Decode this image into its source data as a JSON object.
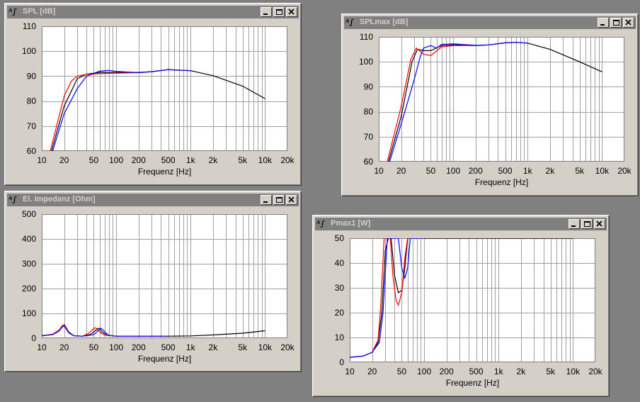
{
  "windows": {
    "spl": {
      "title": "SPL [dB]"
    },
    "splmax": {
      "title": "SPLmax [dB]"
    },
    "impedance": {
      "title": "El. Impedanz [Ohm]"
    },
    "pmax": {
      "title": "Pmax1 [W]"
    }
  },
  "colors": {
    "titlebar": "#808080",
    "window_bg": "#d4d0c8",
    "plot_bg": "#ffffff",
    "series": [
      "#000000",
      "#ff0000",
      "#0000ff"
    ]
  },
  "icons": {
    "window_icon": "app-icon",
    "minimize": "minimize-icon",
    "maximize": "maximize-icon",
    "close": "close-icon"
  },
  "chart_data": [
    {
      "id": "spl",
      "type": "line",
      "xscale": "log",
      "xlim": [
        10,
        20000
      ],
      "ylim": [
        60,
        110
      ],
      "xticks": [
        10,
        20,
        50,
        100,
        200,
        500,
        1000,
        2000,
        5000,
        10000,
        20000
      ],
      "xticklabels": [
        "10",
        "20",
        "50",
        "100",
        "200",
        "500",
        "1k",
        "2k",
        "5k",
        "10k",
        "20k"
      ],
      "yticks": [
        60,
        70,
        80,
        90,
        100,
        110
      ],
      "xlabel": "Frequenz [Hz]",
      "grid": true,
      "series": [
        {
          "color": "#000000",
          "x": [
            13.5,
            20,
            30,
            40,
            60,
            100,
            200,
            300,
            500,
            700,
            1000,
            2000,
            5000,
            10000
          ],
          "y": [
            60,
            78,
            89,
            90.8,
            91.5,
            91.5,
            91.5,
            91.8,
            92.6,
            92.4,
            92.2,
            90.2,
            86,
            81
          ]
        },
        {
          "color": "#ff0000",
          "x": [
            13,
            20,
            25,
            30,
            40,
            60,
            100,
            200,
            300,
            500,
            700,
            1000
          ],
          "y": [
            60,
            82,
            88,
            90,
            90.7,
            91,
            91.2,
            91.4,
            91.8,
            92.6,
            92.4,
            92.2
          ]
        },
        {
          "color": "#0000ff",
          "x": [
            14,
            20,
            30,
            40,
            60,
            80,
            100,
            200,
            300,
            500,
            700,
            1000
          ],
          "y": [
            60,
            75,
            85,
            90,
            92,
            92.3,
            91.9,
            91.4,
            91.8,
            92.6,
            92.4,
            92.2
          ]
        }
      ]
    },
    {
      "id": "splmax",
      "type": "line",
      "xscale": "log",
      "xlim": [
        10,
        20000
      ],
      "ylim": [
        60,
        110
      ],
      "xticks": [
        10,
        20,
        50,
        100,
        200,
        500,
        1000,
        2000,
        5000,
        10000,
        20000
      ],
      "xticklabels": [
        "10",
        "20",
        "50",
        "100",
        "200",
        "500",
        "1k",
        "2k",
        "5k",
        "10k",
        "20k"
      ],
      "yticks": [
        60,
        70,
        80,
        90,
        100,
        110
      ],
      "xlabel": "Frequenz [Hz]",
      "grid": true,
      "series": [
        {
          "color": "#000000",
          "x": [
            13.5,
            20,
            28,
            33,
            40,
            50,
            70,
            100,
            200,
            300,
            500,
            700,
            1000,
            2000,
            5000,
            10000
          ],
          "y": [
            60,
            78,
            100,
            105,
            104.5,
            104.5,
            106.5,
            106.8,
            106.5,
            106.8,
            107.6,
            107.8,
            107.5,
            105,
            100,
            96
          ]
        },
        {
          "color": "#ff0000",
          "x": [
            13,
            20,
            27,
            32,
            40,
            50,
            70,
            100,
            200,
            300,
            500,
            700,
            1000
          ],
          "y": [
            60,
            82,
            101,
            105.5,
            103,
            102.5,
            106,
            106.5,
            106.5,
            106.8,
            107.6,
            107.8,
            107.5
          ]
        },
        {
          "color": "#0000ff",
          "x": [
            14,
            20,
            30,
            36,
            40,
            50,
            60,
            70,
            100,
            200,
            300,
            500,
            700,
            1000
          ],
          "y": [
            60,
            75,
            93,
            102,
            105.5,
            106.5,
            105.5,
            107,
            107.2,
            106.6,
            106.8,
            107.6,
            107.8,
            107.5
          ]
        }
      ]
    },
    {
      "id": "impedance",
      "type": "line",
      "xscale": "log",
      "xlim": [
        10,
        20000
      ],
      "ylim": [
        0,
        500
      ],
      "xticks": [
        10,
        20,
        50,
        100,
        200,
        500,
        1000,
        2000,
        5000,
        10000,
        20000
      ],
      "xticklabels": [
        "10",
        "20",
        "50",
        "100",
        "200",
        "500",
        "1k",
        "2k",
        "5k",
        "10k",
        "20k"
      ],
      "yticks": [
        0,
        100,
        200,
        300,
        400,
        500
      ],
      "xlabel": "Frequenz [Hz]",
      "grid": true,
      "series": [
        {
          "color": "#000000",
          "x": [
            10,
            14,
            17,
            19,
            20,
            21,
            23,
            27,
            35,
            45,
            52,
            57,
            60,
            65,
            75,
            100,
            200,
            500,
            1000,
            2000,
            5000,
            10000
          ],
          "y": [
            10,
            15,
            30,
            50,
            55,
            45,
            25,
            10,
            8,
            15,
            30,
            40,
            38,
            25,
            12,
            8,
            8,
            8,
            9,
            13,
            20,
            30
          ]
        },
        {
          "color": "#ff0000",
          "x": [
            10,
            14,
            17,
            19,
            20,
            21,
            23,
            27,
            35,
            42,
            48,
            52,
            55,
            60,
            70,
            100,
            200,
            500
          ],
          "y": [
            10,
            16,
            32,
            52,
            52,
            42,
            22,
            10,
            8,
            18,
            35,
            42,
            38,
            25,
            12,
            8,
            8,
            8
          ]
        },
        {
          "color": "#0000ff",
          "x": [
            10,
            14,
            17,
            19,
            20,
            21,
            23,
            27,
            35,
            50,
            56,
            62,
            66,
            72,
            80,
            100,
            200,
            500
          ],
          "y": [
            10,
            14,
            28,
            46,
            48,
            40,
            22,
            10,
            8,
            14,
            28,
            40,
            35,
            22,
            12,
            8,
            8,
            8
          ]
        }
      ]
    },
    {
      "id": "pmax",
      "type": "line",
      "xscale": "log",
      "xlim": [
        10,
        20000
      ],
      "ylim": [
        0,
        50
      ],
      "xticks": [
        10,
        20,
        50,
        100,
        200,
        500,
        1000,
        2000,
        5000,
        10000,
        20000
      ],
      "xticklabels": [
        "10",
        "20",
        "50",
        "100",
        "200",
        "500",
        "1k",
        "2k",
        "5k",
        "10k",
        "20k"
      ],
      "yticks": [
        0,
        10,
        20,
        30,
        40,
        50
      ],
      "xlabel": "Frequenz [Hz]",
      "grid": true,
      "series": [
        {
          "color": "#000000",
          "x": [
            10,
            15,
            20,
            24,
            27,
            30,
            33,
            36,
            40,
            45,
            50,
            55,
            60,
            70,
            100,
            1000,
            10000
          ],
          "y": [
            2,
            2.5,
            4,
            8,
            20,
            45,
            50,
            50,
            35,
            28,
            29,
            38,
            50,
            50,
            50,
            50,
            50
          ]
        },
        {
          "color": "#ff0000",
          "x": [
            10,
            15,
            20,
            24,
            26,
            29,
            32,
            35,
            38,
            42,
            45,
            50,
            55,
            60,
            70,
            100
          ],
          "y": [
            2,
            2.5,
            4,
            9,
            22,
            50,
            50,
            50,
            35,
            25,
            23,
            28,
            42,
            50,
            50,
            50
          ]
        },
        {
          "color": "#0000ff",
          "x": [
            10,
            15,
            20,
            25,
            28,
            32,
            36,
            40,
            45,
            50,
            55,
            60,
            65,
            70,
            100
          ],
          "y": [
            2,
            2.5,
            4,
            8,
            20,
            50,
            50,
            50,
            50,
            38,
            34,
            38,
            50,
            50,
            50
          ]
        }
      ]
    }
  ]
}
